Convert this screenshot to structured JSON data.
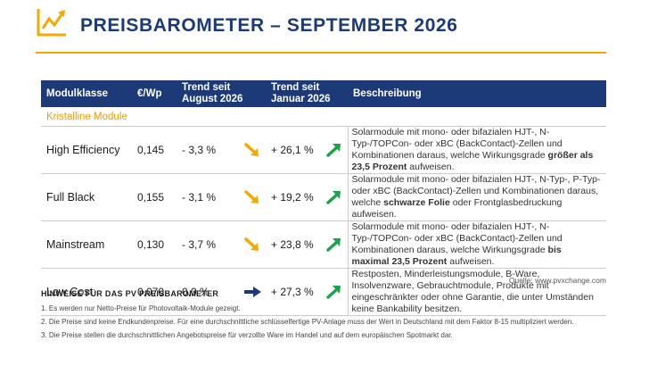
{
  "header": {
    "title": "PREISBAROMETER – SEPTEMBER 2026",
    "logo_icon": "chart-trend-logo-icon"
  },
  "table": {
    "columns": [
      "Modulklasse",
      "€/Wp",
      "Trend seit August 2026",
      "Trend seit Januar 2026",
      "Beschreibung"
    ],
    "section": "Kristalline Module",
    "rows": [
      {
        "name": "High Efficiency",
        "price": "0,145",
        "trend_aug": "- 3,3 %",
        "trend_aug_icon": "arrow-down-right-icon",
        "trend_jan": "+ 26,1 %",
        "trend_jan_icon": "arrow-up-right-icon",
        "desc_pre": "Solarmodule mit mono- oder bifazialen HJT-, N-Typ-/TOPCon- oder xBC (BackContact)-Zellen und Kombinationen daraus, welche Wirkungsgrade ",
        "desc_bold": "größer als 23,5 Prozent",
        "desc_post": " aufweisen."
      },
      {
        "name": "Full Black",
        "price": "0,155",
        "trend_aug": "- 3,1 %",
        "trend_aug_icon": "arrow-down-right-icon",
        "trend_jan": "+ 19,2 %",
        "trend_jan_icon": "arrow-up-right-icon",
        "desc_pre": "Solarmodule mit mono- oder bifazialen HJT-, N-Typ-, P-Typ- oder xBC (BackContact)-Zellen und Kombinationen daraus, welche ",
        "desc_bold": "schwarze Folie",
        "desc_post": " oder Frontglasbedruckung aufweisen."
      },
      {
        "name": "Mainstream",
        "price": "0,130",
        "trend_aug": "- 3,7 %",
        "trend_aug_icon": "arrow-down-right-icon",
        "trend_jan": "+ 23,8 %",
        "trend_jan_icon": "arrow-up-right-icon",
        "desc_pre": "Solarmodule mit mono- oder bifazialen HJT-, N-Typ-/TOPCon- oder xBC (BackContact)-Zellen und Kombinationen daraus, welche Wirkungsgrade ",
        "desc_bold": "bis maximal 23,5 Prozent",
        "desc_post": " aufweisen."
      },
      {
        "name": "Low Cost",
        "price": "0,070",
        "trend_aug": "0,0 %",
        "trend_aug_icon": "arrow-right-icon",
        "trend_jan": "+ 27,3 %",
        "trend_jan_icon": "arrow-up-right-icon",
        "desc_pre": "Restposten, Minderleistungsmodule, B-Ware, Insolvenzware, Gebrauchtmodule, Produkte mit eingeschränkter oder ohne Garantie, die unter Umständen keine Bankability besitzen.",
        "desc_bold": "",
        "desc_post": ""
      }
    ]
  },
  "source": "Quelle: www.pvxchange.com",
  "notes": {
    "title": "HINWEISE FÜR DAS PV PREISBAROMETER",
    "items": [
      "1. Es werden nur Netto-Preise für Photovoltaik-Module gezeigt.",
      "2. Die Preise sind keine Endkundenpreise. Für eine durchschnittliche schlüsselfertige PV-Anlage muss der Wert in Deutschland mit dem Faktor 8-15 multipliziert werden.",
      "3. Die Preise stellen die durchschnittlichen Angebotspreise für verzollte Ware im Handel und auf dem europäischen Spotmarkt dar."
    ]
  },
  "colors": {
    "navy": "#1d3a78",
    "accent": "#f2a900",
    "up": "#1aa34a",
    "down": "#f2a900",
    "neutral": "#1d3a78"
  }
}
